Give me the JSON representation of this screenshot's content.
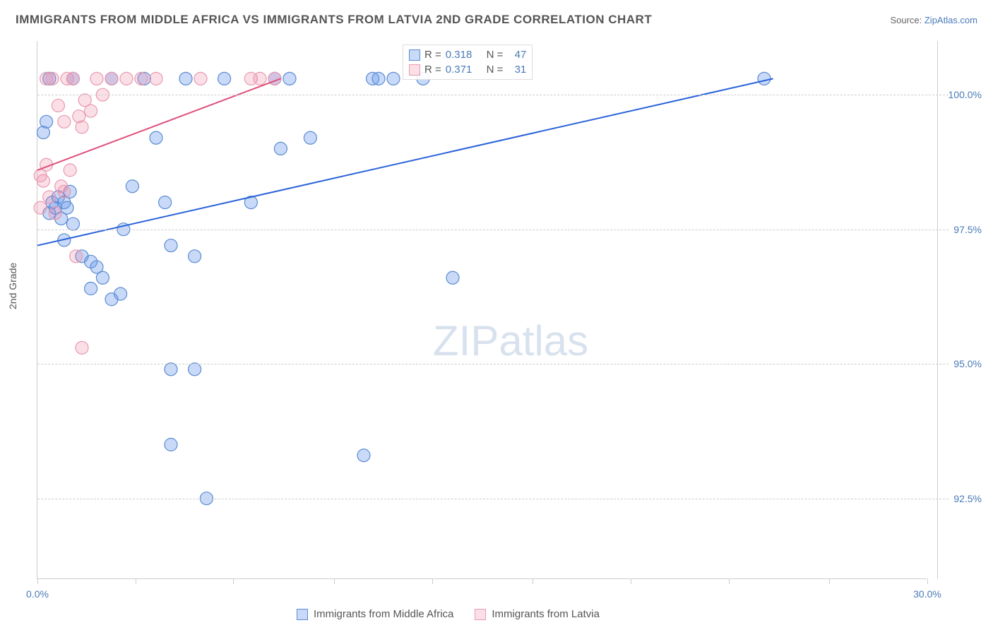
{
  "title": "IMMIGRANTS FROM MIDDLE AFRICA VS IMMIGRANTS FROM LATVIA 2ND GRADE CORRELATION CHART",
  "source_prefix": "Source: ",
  "source_name": "ZipAtlas.com",
  "y_axis_label": "2nd Grade",
  "watermark_bold": "ZIP",
  "watermark_light": "atlas",
  "chart": {
    "type": "scatter",
    "xlim": [
      0,
      30
    ],
    "ylim": [
      91,
      101
    ],
    "x_ticks": [
      0,
      3.3,
      6.6,
      10,
      13.3,
      16.7,
      20,
      23.3,
      26.7,
      30
    ],
    "x_tick_labels": {
      "0": "0.0%",
      "30": "30.0%"
    },
    "y_gridlines": [
      92.5,
      95.0,
      97.5,
      100.0
    ],
    "y_tick_labels": {
      "92.5": "92.5%",
      "95.0": "95.0%",
      "97.5": "97.5%",
      "100.0": "100.0%"
    },
    "marker_radius": 9,
    "marker_stroke_width": 1.2,
    "line_width": 2,
    "series": [
      {
        "name": "Immigrants from Middle Africa",
        "fill": "rgba(100,149,237,0.35)",
        "stroke": "#5b8bd0",
        "line_color": "#2962d9",
        "R": "0.318",
        "N": "47",
        "trend": {
          "x1": 0,
          "y1": 97.2,
          "x2": 24.8,
          "y2": 100.3
        },
        "points": [
          [
            0.4,
            97.8
          ],
          [
            0.5,
            98.0
          ],
          [
            0.6,
            97.9
          ],
          [
            0.7,
            98.1
          ],
          [
            0.8,
            97.7
          ],
          [
            0.9,
            98.0
          ],
          [
            1.0,
            97.9
          ],
          [
            1.1,
            98.2
          ],
          [
            1.2,
            97.6
          ],
          [
            0.9,
            97.3
          ],
          [
            1.5,
            97.0
          ],
          [
            1.8,
            96.9
          ],
          [
            2.0,
            96.8
          ],
          [
            2.5,
            96.2
          ],
          [
            2.8,
            96.3
          ],
          [
            3.2,
            98.3
          ],
          [
            3.6,
            100.3
          ],
          [
            4.0,
            99.2
          ],
          [
            4.3,
            98.0
          ],
          [
            4.5,
            97.2
          ],
          [
            5.0,
            100.3
          ],
          [
            5.3,
            97.0
          ],
          [
            6.3,
            100.3
          ],
          [
            7.2,
            98.0
          ],
          [
            8.0,
            100.3
          ],
          [
            8.2,
            99.0
          ],
          [
            8.5,
            100.3
          ],
          [
            9.2,
            99.2
          ],
          [
            11.3,
            100.3
          ],
          [
            11.5,
            100.3
          ],
          [
            12.0,
            100.3
          ],
          [
            13.0,
            100.3
          ],
          [
            14.0,
            96.6
          ],
          [
            4.5,
            94.9
          ],
          [
            5.3,
            94.9
          ],
          [
            4.5,
            93.5
          ],
          [
            11.0,
            93.3
          ],
          [
            5.7,
            92.5
          ],
          [
            0.3,
            99.5
          ],
          [
            0.2,
            99.3
          ],
          [
            0.4,
            100.3
          ],
          [
            1.2,
            100.3
          ],
          [
            1.8,
            96.4
          ],
          [
            2.2,
            96.6
          ],
          [
            2.5,
            100.3
          ],
          [
            2.9,
            97.5
          ],
          [
            24.5,
            100.3
          ]
        ]
      },
      {
        "name": "Immigrants from Latvia",
        "fill": "rgba(240,128,160,0.25)",
        "stroke": "#e89ab0",
        "line_color": "#e04f7a",
        "R": "0.371",
        "N": "31",
        "trend": {
          "x1": 0,
          "y1": 98.6,
          "x2": 8.2,
          "y2": 100.3
        },
        "points": [
          [
            0.3,
            100.3
          ],
          [
            0.5,
            100.3
          ],
          [
            0.7,
            99.8
          ],
          [
            0.9,
            99.5
          ],
          [
            1.0,
            100.3
          ],
          [
            1.2,
            100.3
          ],
          [
            1.4,
            99.6
          ],
          [
            1.5,
            99.4
          ],
          [
            1.6,
            99.9
          ],
          [
            1.8,
            99.7
          ],
          [
            2.0,
            100.3
          ],
          [
            2.2,
            100.0
          ],
          [
            2.5,
            100.3
          ],
          [
            3.0,
            100.3
          ],
          [
            3.5,
            100.3
          ],
          [
            4.0,
            100.3
          ],
          [
            5.5,
            100.3
          ],
          [
            7.2,
            100.3
          ],
          [
            7.5,
            100.3
          ],
          [
            8.0,
            100.3
          ],
          [
            0.3,
            98.7
          ],
          [
            0.2,
            98.4
          ],
          [
            0.1,
            98.5
          ],
          [
            0.4,
            98.1
          ],
          [
            0.1,
            97.9
          ],
          [
            0.6,
            97.8
          ],
          [
            0.8,
            98.3
          ],
          [
            1.5,
            95.3
          ],
          [
            1.3,
            97.0
          ],
          [
            0.9,
            98.2
          ],
          [
            1.1,
            98.6
          ]
        ]
      }
    ]
  },
  "legend_top_rows": [
    {
      "swatch": "legend-blue",
      "R_label": "R = ",
      "R": "0.318",
      "N_label": "N = ",
      "N": "47"
    },
    {
      "swatch": "legend-pink",
      "R_label": "R = ",
      "R": "0.371",
      "N_label": "N = ",
      "N": "31"
    }
  ],
  "legend_bottom": [
    {
      "swatch": "legend-blue",
      "label": "Immigrants from Middle Africa"
    },
    {
      "swatch": "legend-pink",
      "label": "Immigrants from Latvia"
    }
  ]
}
